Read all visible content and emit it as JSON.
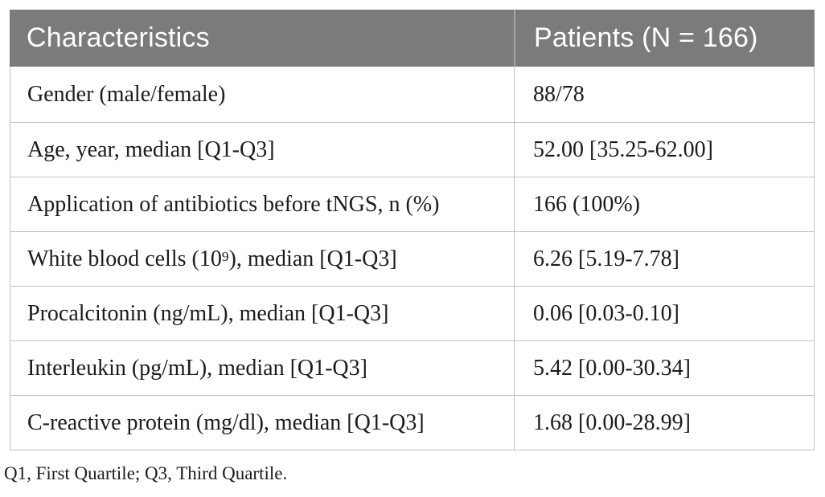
{
  "table": {
    "header": {
      "characteristics": "Characteristics",
      "patients": "Patients (N = 166)"
    },
    "rows": [
      {
        "label_pre": "Gender (male/female)",
        "label_sup": "",
        "label_post": "",
        "value": "88/78"
      },
      {
        "label_pre": "Age, year, median [Q1-Q3]",
        "label_sup": "",
        "label_post": "",
        "value": "52.00 [35.25-62.00]"
      },
      {
        "label_pre": "Application of antibiotics before tNGS, n (%)",
        "label_sup": "",
        "label_post": "",
        "value": "166 (100%)"
      },
      {
        "label_pre": "White blood cells (10",
        "label_sup": "9",
        "label_post": "), median [Q1-Q3]",
        "value": "6.26 [5.19-7.78]"
      },
      {
        "label_pre": "Procalcitonin (ng/mL), median [Q1-Q3]",
        "label_sup": "",
        "label_post": "",
        "value": "0.06 [0.03-0.10]"
      },
      {
        "label_pre": "Interleukin (pg/mL), median [Q1-Q3]",
        "label_sup": "",
        "label_post": "",
        "value": "5.42 [0.00-30.34]"
      },
      {
        "label_pre": "C-reactive protein (mg/dl), median [Q1-Q3]",
        "label_sup": "",
        "label_post": "",
        "value": "1.68 [0.00-28.99]"
      }
    ],
    "footnote": "Q1, First Quartile; Q3, Third Quartile."
  },
  "colors": {
    "header_bg": "#7b7b7b",
    "header_text": "#ffffff",
    "header_divider": "#a6a6a6",
    "border": "#c3c3c3",
    "body_text": "#1c1c1c"
  }
}
